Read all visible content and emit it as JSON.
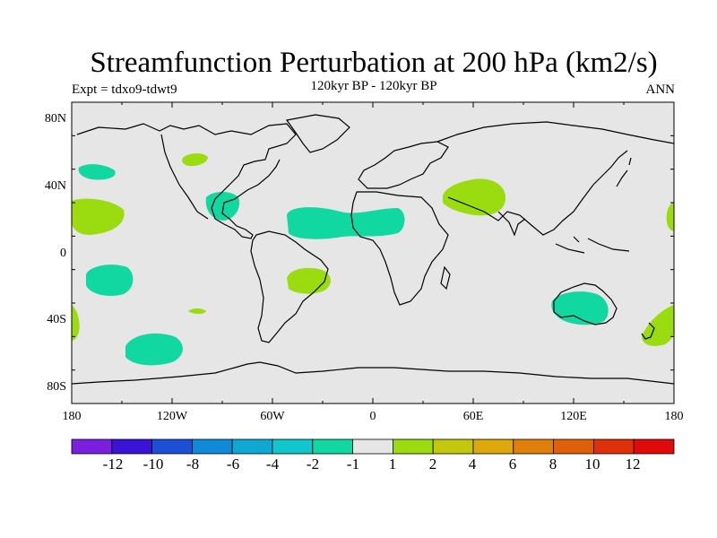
{
  "header": {
    "title": "Streamfunction Perturbation at 200 hPa (km2/s)",
    "subtitle": "120kyr BP - 120kyr BP",
    "left_label": "Expt = tdxo9-tdwt9",
    "right_label": "ANN"
  },
  "map": {
    "background_color": "#e6e6e6",
    "coast_color": "#000000",
    "projection": "cylindrical-equidistant",
    "lon_range": [
      -180,
      180
    ],
    "lat_range": [
      -90,
      90
    ],
    "lon_ticks": [
      "180",
      "120W",
      "60W",
      "0",
      "60E",
      "120E",
      "180"
    ],
    "lat_ticks": [
      "80N",
      "40N",
      "0",
      "40S",
      "80S"
    ]
  },
  "colorbar": {
    "colors": [
      "#7a1fe0",
      "#3a13d8",
      "#1c4fd4",
      "#0f8ad8",
      "#0ea9d2",
      "#0fc7cc",
      "#10d8a0",
      "#e6e6e6",
      "#9bdc10",
      "#c4c80c",
      "#dca80a",
      "#e0800a",
      "#e0600a",
      "#e0300a",
      "#e00a0a"
    ],
    "labels": [
      "-12",
      "-10",
      "-8",
      "-6",
      "-4",
      "-2",
      "-1",
      "1",
      "2",
      "4",
      "6",
      "8",
      "10",
      "12"
    ]
  },
  "chart_data": {
    "type": "heatmap",
    "title": "Streamfunction Perturbation at 200 hPa (km2/s)",
    "levels": [
      -12,
      -10,
      -8,
      -6,
      -4,
      -2,
      -1,
      1,
      2,
      4,
      6,
      8,
      10,
      12
    ],
    "regions": [
      {
        "name": "central-north-pacific",
        "level": "-2 to -1",
        "lon_range": [
          -170,
          -150
        ],
        "lat_range": [
          45,
          52
        ],
        "color": "#10d8a0"
      },
      {
        "name": "north-atlantic-west",
        "level": "-2 to -1",
        "lon_range": [
          -95,
          -80
        ],
        "lat_range": [
          26,
          36
        ],
        "color": "#10d8a0"
      },
      {
        "name": "tropical-atlantic-africa",
        "level": "-2 to -1",
        "lon_range": [
          -52,
          20
        ],
        "lat_range": [
          9,
          25
        ],
        "color": "#10d8a0"
      },
      {
        "name": "south-pacific-1",
        "level": "-2 to -1",
        "lon_range": [
          -170,
          -145
        ],
        "lat_range": [
          -25,
          -9
        ],
        "color": "#10d8a0"
      },
      {
        "name": "south-pacific-2",
        "level": "-2 to -1",
        "lon_range": [
          -145,
          -115
        ],
        "lat_range": [
          -68,
          -50
        ],
        "color": "#10d8a0"
      },
      {
        "name": "australia",
        "level": "-2 to -1",
        "lon_range": [
          112,
          132
        ],
        "lat_range": [
          -44,
          -24
        ],
        "color": "#10d8a0"
      },
      {
        "name": "north-america-east",
        "level": "1 to 2",
        "lon_range": [
          -108,
          -100
        ],
        "lat_range": [
          51,
          57
        ],
        "color": "#9bdc10"
      },
      {
        "name": "east-pacific",
        "level": "1 to 2",
        "lon_range": [
          -180,
          -160
        ],
        "lat_range": [
          10,
          30
        ],
        "color": "#9bdc10"
      },
      {
        "name": "south-america-east",
        "level": "1 to 2",
        "lon_range": [
          -52,
          -36
        ],
        "lat_range": [
          -23,
          -9
        ],
        "color": "#9bdc10"
      },
      {
        "name": "south-atlantic-small",
        "level": "1 to 2",
        "lon_range": [
          -108,
          -100
        ],
        "lat_range": [
          -36,
          -33
        ],
        "color": "#9bdc10"
      },
      {
        "name": "middle-east",
        "level": "1 to 2",
        "lon_range": [
          42,
          80
        ],
        "lat_range": [
          22,
          42
        ],
        "color": "#9bdc10"
      },
      {
        "name": "far-east-pacific-south",
        "level": "1 to 2",
        "lon_range": [
          -180,
          -172
        ],
        "lat_range": [
          -50,
          -30
        ],
        "color": "#9bdc10"
      },
      {
        "name": "new-zealand-east",
        "level": "1 to 2",
        "lon_range": [
          160,
          180
        ],
        "lat_range": [
          -55,
          -30
        ],
        "color": "#9bdc10"
      },
      {
        "name": "date-line-north",
        "level": "1 to 2",
        "lon_range": [
          175,
          180
        ],
        "lat_range": [
          12,
          28
        ],
        "color": "#9bdc10"
      }
    ]
  }
}
